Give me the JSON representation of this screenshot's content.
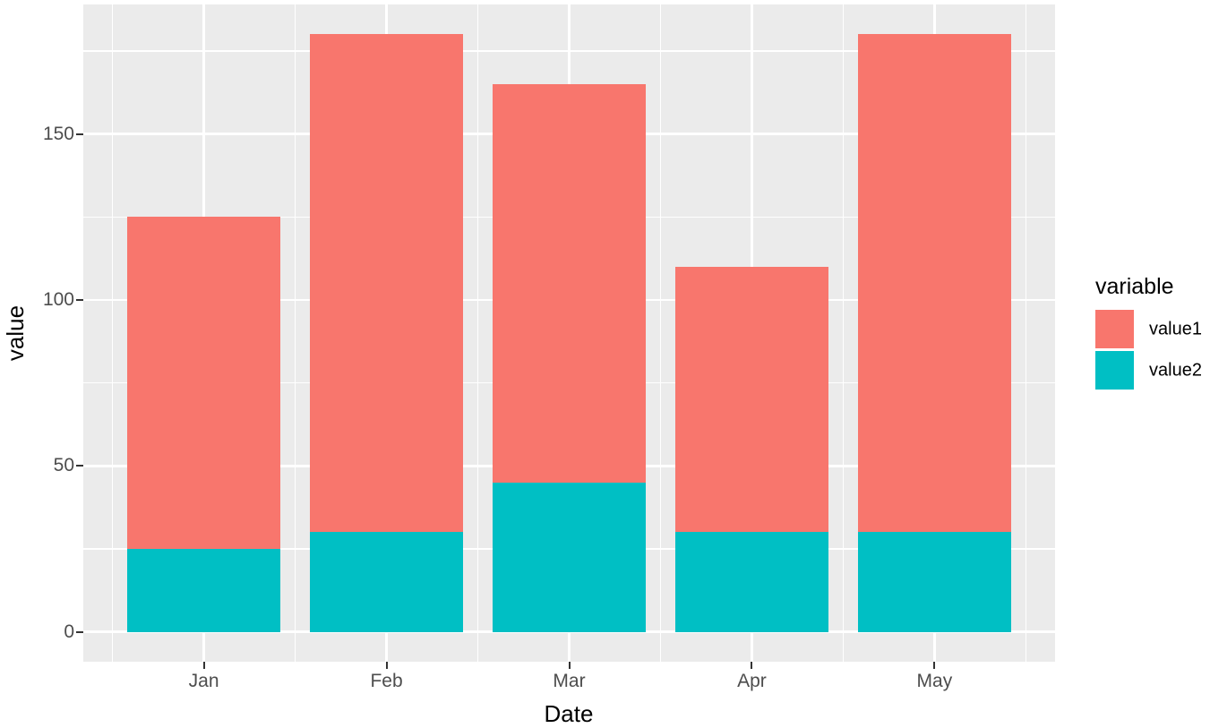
{
  "chart_data": {
    "type": "bar",
    "stacked": true,
    "title": "",
    "xlabel": "Date",
    "ylabel": "value",
    "legend_title": "variable",
    "legend_position": "right",
    "categories": [
      "Jan",
      "Feb",
      "Mar",
      "Apr",
      "May"
    ],
    "series": [
      {
        "name": "value1",
        "color": "#F8766D",
        "values": [
          100,
          150,
          120,
          80,
          150
        ]
      },
      {
        "name": "value2",
        "color": "#00BFC4",
        "values": [
          25,
          30,
          45,
          30,
          30
        ]
      }
    ],
    "stack_totals": [
      125,
      180,
      165,
      110,
      180
    ],
    "ylim": [
      -9,
      189
    ],
    "yticks": [
      0,
      50,
      100,
      150
    ],
    "yticks_minor": [
      25,
      75,
      125,
      175
    ],
    "grid": true,
    "colors": {
      "panel_background": "#EBEBEB",
      "grid_major": "#FFFFFF",
      "grid_minor": "#FFFFFF",
      "tick_mark": "#333333",
      "tick_label": "#4D4D4D",
      "axis_title": "#000000",
      "legend_text": "#000000",
      "figure_background": "#FFFFFF"
    }
  }
}
